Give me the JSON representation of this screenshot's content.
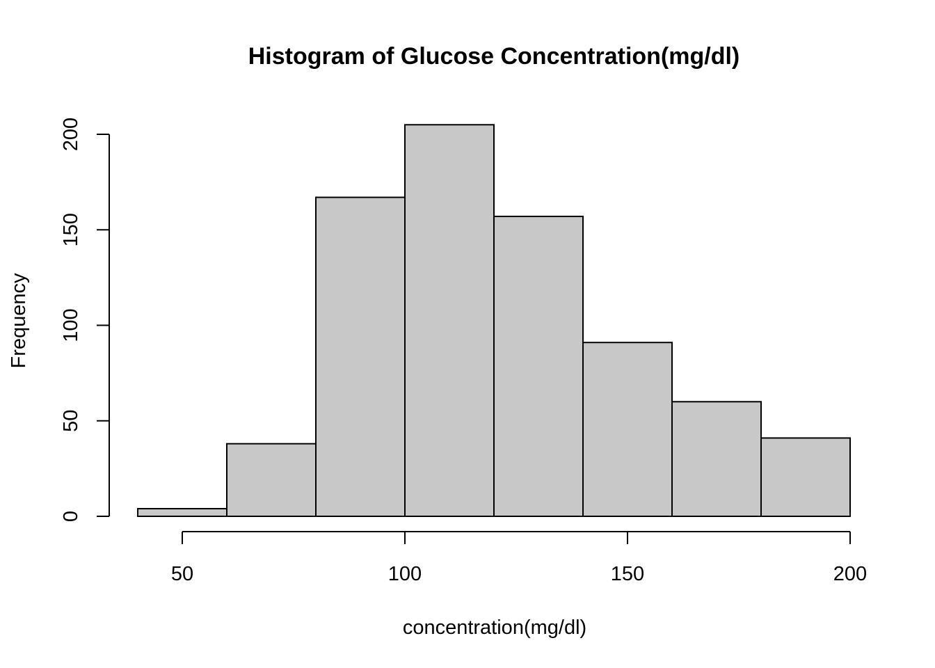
{
  "chart_data": {
    "type": "bar",
    "title": "Histogram of Glucose Concentration(mg/dl)",
    "xlabel": "concentration(mg/dl)",
    "ylabel": "Frequency",
    "bins": [
      {
        "start": 40,
        "end": 60,
        "count": 4
      },
      {
        "start": 60,
        "end": 80,
        "count": 38
      },
      {
        "start": 80,
        "end": 100,
        "count": 167
      },
      {
        "start": 100,
        "end": 120,
        "count": 205
      },
      {
        "start": 120,
        "end": 140,
        "count": 157
      },
      {
        "start": 140,
        "end": 160,
        "count": 91
      },
      {
        "start": 160,
        "end": 180,
        "count": 60
      },
      {
        "start": 180,
        "end": 200,
        "count": 41
      }
    ],
    "xlim": [
      40,
      200
    ],
    "ylim": [
      0,
      200
    ],
    "xticks": [
      50,
      100,
      150,
      200
    ],
    "yticks": [
      0,
      50,
      100,
      150,
      200
    ],
    "grid": false,
    "legend": "none",
    "bar_color": "#c8c8c8",
    "edge_color": "#000000"
  }
}
